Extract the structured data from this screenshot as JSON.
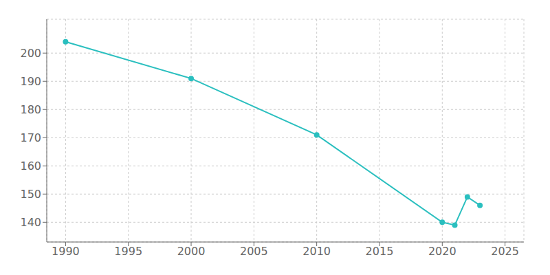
{
  "chart_data": {
    "type": "line",
    "x": [
      1990,
      2000,
      2010,
      2020,
      2021,
      2022,
      2023
    ],
    "values": [
      204,
      191,
      171,
      140,
      139,
      149,
      146
    ],
    "color": "#2abfbf",
    "marker": "circle",
    "xlim": [
      1988.5,
      2026.5
    ],
    "ylim": [
      133,
      212
    ],
    "xticks": [
      1990,
      1995,
      2000,
      2005,
      2010,
      2015,
      2020,
      2025
    ],
    "yticks": [
      140,
      150,
      160,
      170,
      180,
      190,
      200
    ],
    "grid": true
  }
}
